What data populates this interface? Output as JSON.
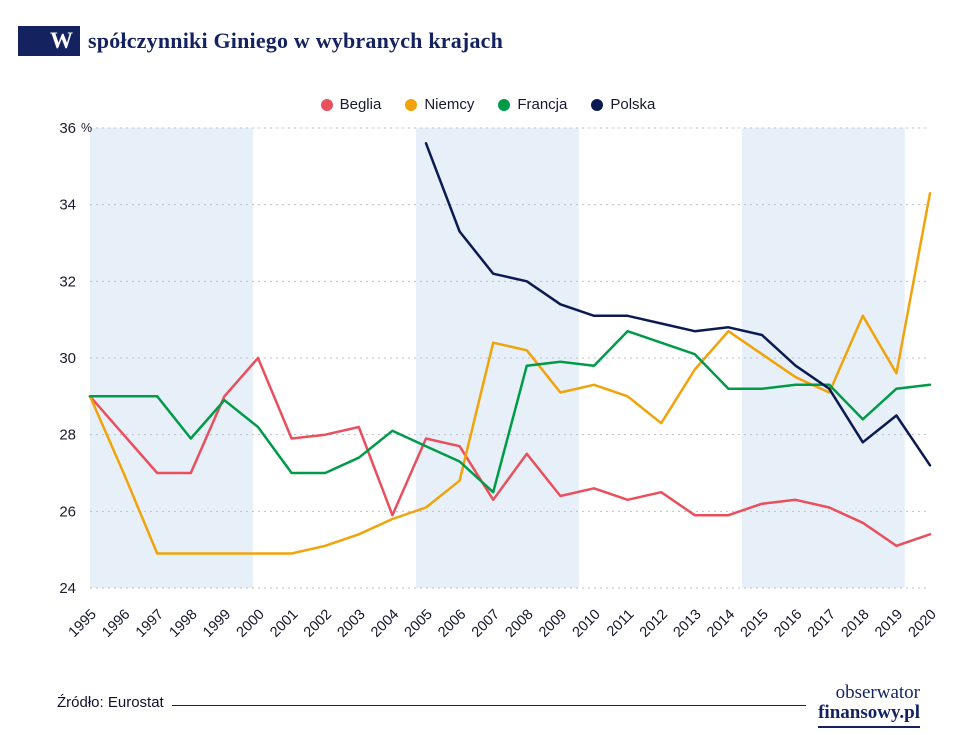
{
  "title": {
    "badge_letter": "W",
    "rest": "spółczynniki Giniego w wybranych krajach"
  },
  "legend": [
    {
      "label": "Beglia",
      "color": "#e8505e"
    },
    {
      "label": "Niemcy",
      "color": "#f0a30a"
    },
    {
      "label": "Francja",
      "color": "#009b48"
    },
    {
      "label": "Polska",
      "color": "#0c1a52"
    }
  ],
  "chart_data": {
    "type": "line",
    "title": "Współczynniki Giniego w wybranych krajach",
    "x": [
      1995,
      1996,
      1997,
      1998,
      1999,
      2000,
      2001,
      2002,
      2003,
      2004,
      2005,
      2006,
      2007,
      2008,
      2009,
      2010,
      2011,
      2012,
      2013,
      2014,
      2015,
      2016,
      2017,
      2018,
      2019,
      2020
    ],
    "ylim": [
      24,
      36
    ],
    "yticks": [
      24,
      26,
      28,
      30,
      32,
      34,
      36
    ],
    "y_suffix": "%",
    "grid": "horizontal-dotted",
    "grid_color": "#b9c0cc",
    "band_color": "#e7f0f8",
    "legend_position": "top-center",
    "series": [
      {
        "name": "Beglia",
        "color": "#e8505e",
        "values": [
          29.0,
          28.0,
          27.0,
          27.0,
          29.0,
          30.0,
          27.9,
          28.0,
          28.2,
          25.9,
          27.9,
          27.7,
          26.3,
          27.5,
          26.4,
          26.6,
          26.3,
          26.5,
          25.9,
          25.9,
          26.2,
          26.3,
          26.1,
          25.7,
          25.1,
          25.4
        ]
      },
      {
        "name": "Niemcy",
        "color": "#f0a30a",
        "values": [
          29.0,
          27.0,
          24.9,
          24.9,
          24.9,
          24.9,
          24.9,
          25.1,
          25.4,
          25.8,
          26.1,
          26.8,
          30.4,
          30.2,
          29.1,
          29.3,
          29.0,
          28.3,
          29.7,
          30.7,
          30.1,
          29.5,
          29.1,
          31.1,
          29.6,
          34.3
        ]
      },
      {
        "name": "Francja",
        "color": "#009b48",
        "values": [
          29.0,
          29.0,
          29.0,
          27.9,
          28.9,
          28.2,
          27.0,
          27.0,
          27.4,
          28.1,
          27.7,
          27.3,
          26.5,
          29.8,
          29.9,
          29.8,
          30.7,
          30.4,
          30.1,
          29.2,
          29.2,
          29.3,
          29.3,
          28.4,
          29.2,
          29.3
        ]
      },
      {
        "name": "Polska",
        "color": "#0c1a52",
        "values": [
          null,
          null,
          null,
          null,
          null,
          null,
          null,
          null,
          null,
          null,
          35.6,
          33.3,
          32.2,
          32.0,
          31.4,
          31.1,
          31.1,
          30.9,
          30.7,
          30.8,
          30.6,
          29.8,
          29.2,
          27.8,
          28.5,
          27.2
        ]
      }
    ]
  },
  "footer": {
    "source": "Źródło: Eurostat",
    "brand_line1": "obserwator",
    "brand_line2": "finansowy.pl"
  }
}
